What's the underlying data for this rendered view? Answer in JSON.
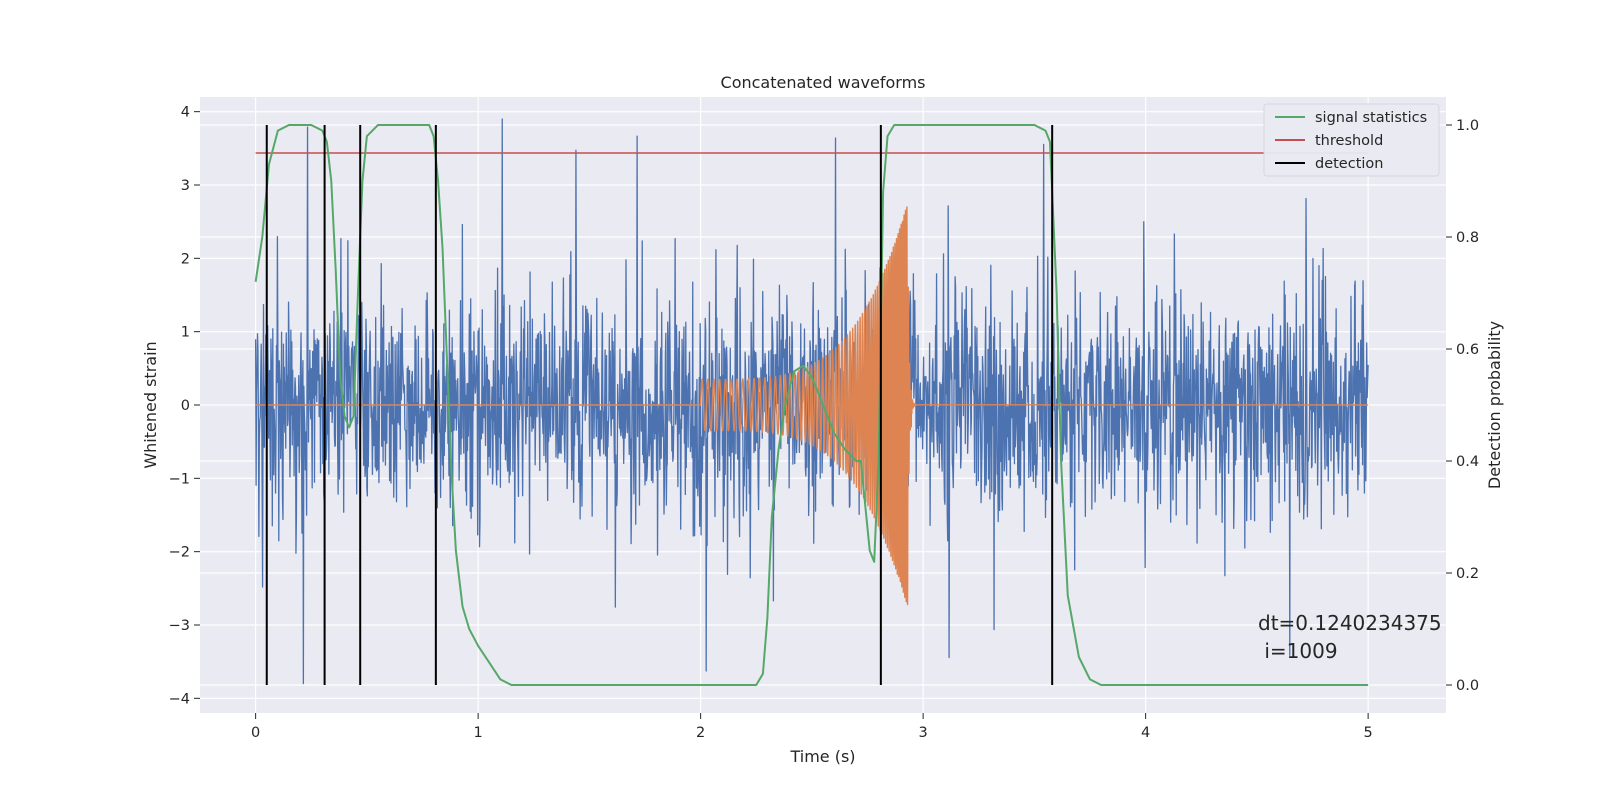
{
  "chart_data": {
    "type": "line",
    "title": "Concatenated waveforms",
    "xlabel": "Time (s)",
    "ylabel": "Whitened strain",
    "y2label": "Detection probability",
    "xlim": [
      -0.25,
      5.35
    ],
    "ylim": [
      -4.2,
      4.2
    ],
    "y2lim": [
      -0.05,
      1.05
    ],
    "xticks": [
      0,
      1,
      2,
      3,
      4,
      5
    ],
    "yticks": [
      -4,
      -3,
      -2,
      -1,
      0,
      1,
      2,
      3,
      4
    ],
    "y2ticks": [
      0.0,
      0.2,
      0.4,
      0.6,
      0.8,
      1.0
    ],
    "xtick_labels": [
      "0",
      "1",
      "2",
      "3",
      "4",
      "5"
    ],
    "ytick_labels": [
      "−4",
      "−3",
      "−2",
      "−1",
      "0",
      "1",
      "2",
      "3",
      "4"
    ],
    "y2tick_labels": [
      "0.0",
      "0.2",
      "0.4",
      "0.6",
      "0.8",
      "1.0"
    ],
    "grid": true,
    "legend_position": "top-right",
    "colors": {
      "noise": "#4c72b0",
      "signal": "#dd8452",
      "statistics": "#55a868",
      "threshold": "#c44e52",
      "detection": "#000000",
      "axes_bg": "#eaeaf2",
      "grid": "#ffffff"
    },
    "series": [
      {
        "name": "signal statistics",
        "axis": "right",
        "points": [
          [
            0.0,
            0.72
          ],
          [
            0.03,
            0.8
          ],
          [
            0.06,
            0.93
          ],
          [
            0.1,
            0.99
          ],
          [
            0.15,
            1.0
          ],
          [
            0.25,
            1.0
          ],
          [
            0.3,
            0.99
          ],
          [
            0.32,
            0.97
          ],
          [
            0.34,
            0.9
          ],
          [
            0.36,
            0.74
          ],
          [
            0.38,
            0.55
          ],
          [
            0.4,
            0.48
          ],
          [
            0.42,
            0.46
          ],
          [
            0.44,
            0.48
          ],
          [
            0.46,
            0.7
          ],
          [
            0.48,
            0.9
          ],
          [
            0.5,
            0.98
          ],
          [
            0.55,
            1.0
          ],
          [
            0.78,
            1.0
          ],
          [
            0.8,
            0.98
          ],
          [
            0.82,
            0.9
          ],
          [
            0.84,
            0.78
          ],
          [
            0.86,
            0.58
          ],
          [
            0.88,
            0.38
          ],
          [
            0.9,
            0.24
          ],
          [
            0.93,
            0.14
          ],
          [
            0.96,
            0.1
          ],
          [
            1.0,
            0.07
          ],
          [
            1.05,
            0.04
          ],
          [
            1.1,
            0.01
          ],
          [
            1.15,
            0.0
          ],
          [
            2.25,
            0.0
          ],
          [
            2.28,
            0.02
          ],
          [
            2.3,
            0.12
          ],
          [
            2.32,
            0.3
          ],
          [
            2.35,
            0.42
          ],
          [
            2.38,
            0.5
          ],
          [
            2.42,
            0.56
          ],
          [
            2.46,
            0.57
          ],
          [
            2.5,
            0.55
          ],
          [
            2.55,
            0.5
          ],
          [
            2.6,
            0.45
          ],
          [
            2.65,
            0.42
          ],
          [
            2.7,
            0.4
          ],
          [
            2.72,
            0.4
          ],
          [
            2.74,
            0.32
          ],
          [
            2.76,
            0.24
          ],
          [
            2.78,
            0.22
          ],
          [
            2.8,
            0.4
          ],
          [
            2.82,
            0.88
          ],
          [
            2.84,
            0.98
          ],
          [
            2.87,
            1.0
          ],
          [
            3.5,
            1.0
          ],
          [
            3.55,
            0.99
          ],
          [
            3.57,
            0.97
          ],
          [
            3.6,
            0.7
          ],
          [
            3.62,
            0.4
          ],
          [
            3.65,
            0.16
          ],
          [
            3.7,
            0.05
          ],
          [
            3.75,
            0.01
          ],
          [
            3.8,
            0.0
          ],
          [
            5.0,
            0.0
          ]
        ]
      },
      {
        "name": "threshold",
        "axis": "right",
        "points": [
          [
            0.0,
            0.95
          ],
          [
            5.0,
            0.95
          ]
        ]
      },
      {
        "name": "detection",
        "axis": "right",
        "times": [
          0.05,
          0.31,
          0.47,
          0.81,
          2.81,
          3.58
        ],
        "range": [
          0.0,
          1.0
        ]
      }
    ],
    "strain_traces": {
      "noise": {
        "t_range": [
          0.0,
          5.0
        ],
        "typical_amplitude": 0.75,
        "peak_amplitude": 3.9
      },
      "waveform": {
        "t_start": 2.0,
        "t_merger": 2.93,
        "t_end": 2.97,
        "amp_start": 0.35,
        "amp_peak": 2.75,
        "f_start": 38.0,
        "f_peak": 160.0
      }
    },
    "annotation": "dt=0.1240234375\n i=1009",
    "annotation_lines": [
      "dt=0.1240234375",
      " i=1009"
    ]
  }
}
